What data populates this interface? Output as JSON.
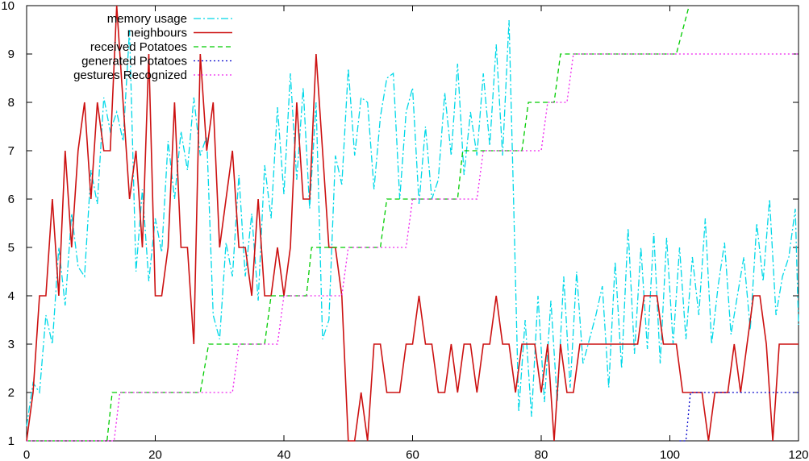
{
  "chart_data": {
    "type": "line",
    "xlim": [
      0,
      120
    ],
    "ylim": [
      1,
      10
    ],
    "x_ticks": [
      "0",
      "20",
      "40",
      "60",
      "80",
      "100",
      "120"
    ],
    "y_ticks": [
      "1",
      "2",
      "3",
      "4",
      "5",
      "6",
      "7",
      "8",
      "9",
      "10"
    ],
    "legend_position": "top-left",
    "grid": false,
    "series": [
      {
        "name": "memory usage",
        "color": "#00d8e8",
        "dash": "dash-dot",
        "x": [
          0,
          1,
          2,
          3,
          4,
          5,
          6,
          7,
          8,
          9,
          10,
          11,
          12,
          13,
          14,
          15,
          16,
          17,
          18,
          19,
          20,
          21,
          22,
          23,
          24,
          25,
          26,
          27,
          28,
          29,
          30,
          31,
          32,
          33,
          34,
          35,
          36,
          37,
          38,
          39,
          40,
          41,
          42,
          43,
          44,
          45,
          46,
          47,
          48,
          49,
          50,
          51,
          52,
          53,
          54,
          55,
          56,
          57,
          58,
          59,
          60,
          61,
          62,
          63,
          64,
          65,
          66,
          67,
          68,
          69,
          70,
          71,
          72,
          73,
          74,
          75,
          75.7,
          76.5,
          77.5,
          78.5,
          79.5,
          80.5,
          81.5,
          82.5,
          83.5,
          84.5,
          85.5,
          86.5,
          87.5,
          88.5,
          89.5,
          90.5,
          91.5,
          92.5,
          93.5,
          94.5,
          95.5,
          96.5,
          97.5,
          98.5,
          99.5,
          100.5,
          101.5,
          102.5,
          103.5,
          104.5,
          105.5,
          106.5,
          107.5,
          108.5,
          109.5,
          110.5,
          111.5,
          112.5,
          113.5,
          114.5,
          115.5,
          116.5,
          117.5,
          118.5,
          119.5,
          120
        ],
        "y": [
          1.3,
          2.2,
          2.0,
          3.6,
          3.0,
          5.0,
          3.8,
          5.7,
          4.6,
          4.4,
          6.6,
          5.9,
          8.1,
          7.4,
          7.8,
          7.2,
          9.5,
          4.5,
          6.2,
          4.3,
          5.6,
          4.9,
          7.2,
          6.0,
          7.4,
          6.6,
          8.1,
          6.9,
          7.3,
          3.6,
          3.1,
          5.1,
          4.4,
          6.5,
          4.4,
          5.7,
          3.9,
          6.7,
          5.6,
          7.9,
          6.1,
          8.6,
          6.4,
          8.3,
          5.8,
          8.0,
          3.1,
          3.5,
          6.9,
          6.3,
          8.7,
          6.9,
          8.1,
          8.0,
          6.2,
          7.7,
          8.5,
          8.6,
          6.0,
          7.8,
          8.3,
          5.9,
          7.5,
          6.0,
          6.4,
          8.2,
          6.9,
          8.8,
          6.5,
          7.8,
          6.9,
          8.6,
          7.1,
          9.2,
          6.9,
          9.7,
          6.0,
          1.6,
          3.5,
          1.5,
          4.0,
          1.8,
          3.9,
          1.8,
          4.4,
          2.1,
          4.5,
          2.6,
          3.1,
          3.6,
          4.2,
          2.1,
          4.7,
          2.5,
          5.4,
          2.8,
          5.0,
          2.9,
          5.3,
          2.6,
          5.2,
          3.0,
          5.0,
          3.1,
          4.8,
          3.6,
          5.6,
          3.0,
          4.2,
          5.1,
          3.2,
          4.0,
          4.8,
          3.3,
          5.5,
          4.3,
          6.0,
          3.6,
          4.4,
          4.8,
          5.8,
          3.4
        ],
        "legend_label": "memory usage"
      },
      {
        "name": "neighbours",
        "color": "#cc1111",
        "dash": "solid",
        "x": [
          0,
          1,
          2,
          3,
          4,
          5,
          6,
          7,
          8,
          9,
          10,
          11,
          12,
          13,
          14,
          15,
          16,
          17,
          18,
          19,
          20,
          21,
          22,
          23,
          24,
          25,
          26,
          27,
          28,
          29,
          30,
          31,
          32,
          33,
          34,
          35,
          36,
          37,
          38,
          39,
          40,
          41,
          42,
          43,
          44,
          45,
          46,
          47,
          48,
          49,
          50,
          51,
          52,
          53,
          54,
          55,
          56,
          57,
          58,
          59,
          60,
          61,
          62,
          63,
          64,
          65,
          66,
          67,
          68,
          69,
          70,
          71,
          72,
          73,
          74,
          75,
          76,
          77,
          78,
          79,
          80,
          81,
          82,
          83,
          84,
          85,
          86,
          87,
          88,
          89,
          90,
          91,
          92,
          93,
          94,
          95,
          96,
          97,
          98,
          99,
          100,
          101,
          102,
          103,
          104,
          105,
          106,
          107,
          108,
          109,
          110,
          111,
          112,
          113,
          114,
          115,
          116,
          117,
          118,
          119,
          120
        ],
        "y": [
          1,
          2,
          4,
          4,
          6,
          4,
          7,
          5,
          7,
          8,
          6,
          8,
          7,
          7,
          10,
          8,
          6,
          7,
          5,
          9,
          4,
          4,
          5,
          8,
          5,
          5,
          3,
          9,
          7,
          8,
          5,
          6,
          7,
          5,
          5,
          4,
          6,
          4,
          4,
          5,
          4,
          5,
          8,
          6,
          6,
          9,
          7,
          5,
          5,
          4,
          1,
          1,
          2,
          1,
          3,
          3,
          2,
          2,
          2,
          3,
          3,
          4,
          3,
          3,
          2,
          2,
          3,
          2,
          3,
          3,
          2,
          3,
          3,
          4,
          3,
          3,
          2,
          3,
          3,
          3,
          2,
          3,
          1,
          3,
          2,
          2,
          3,
          3,
          3,
          3,
          3,
          3,
          3,
          3,
          3,
          3,
          4,
          4,
          4,
          3,
          3,
          3,
          2,
          2,
          2,
          2,
          1,
          2,
          2,
          2,
          3,
          2,
          3,
          4,
          4,
          3,
          1,
          3,
          3,
          3,
          3
        ],
        "legend_label": "neighbours"
      },
      {
        "name": "received Potatoes",
        "color": "#00cc00",
        "dash": "dashed",
        "x": [
          0,
          12.5,
          13.3,
          27,
          28.3,
          37,
          38,
          43.5,
          44.3,
          55,
          56,
          67,
          67.8,
          77,
          78,
          82,
          83,
          85,
          86,
          101,
          103
        ],
        "y": [
          1,
          1,
          2,
          2,
          3,
          3,
          4,
          4,
          5,
          5,
          6,
          6,
          7,
          7,
          8,
          8,
          9,
          9,
          9,
          9,
          10
        ],
        "legend_label": "received Potatoes"
      },
      {
        "name": "generated Potatoes",
        "color": "#0000cc",
        "dash": "dotted",
        "x": [
          101.5,
          102.5,
          103.2,
          120
        ],
        "y": [
          1,
          1,
          2,
          2
        ],
        "legend_label": "generated Potatoes"
      },
      {
        "name": "gestures Recognized",
        "color": "#ee22ee",
        "dash": "dotted",
        "x": [
          0,
          13.6,
          14.5,
          32,
          33,
          39,
          40,
          49,
          50,
          59,
          60,
          70,
          71,
          80,
          81,
          84,
          85,
          120
        ],
        "y": [
          1,
          1,
          2,
          2,
          3,
          3,
          4,
          4,
          5,
          5,
          6,
          6,
          7,
          7,
          8,
          8,
          9,
          9
        ],
        "legend_label": "gestures Recognized"
      }
    ]
  }
}
